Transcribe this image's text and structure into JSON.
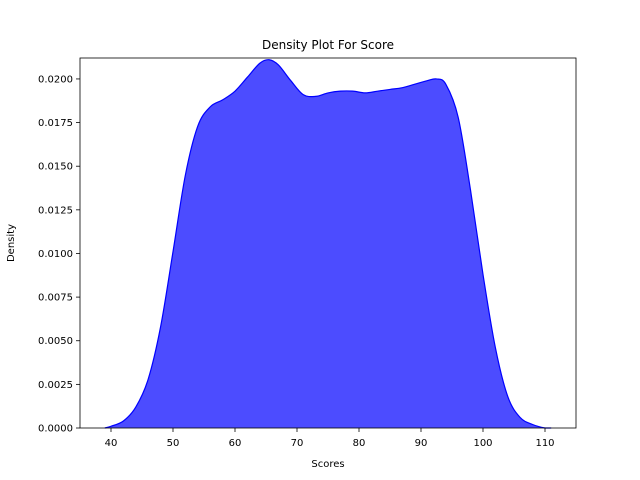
{
  "chart_data": {
    "type": "area",
    "title": "Density Plot For Score",
    "xlabel": "Scores",
    "ylabel": "Density",
    "xlim": [
      35,
      115
    ],
    "ylim": [
      0,
      0.0212
    ],
    "xticks": [
      40,
      50,
      60,
      70,
      80,
      90,
      100,
      110
    ],
    "xtick_labels": [
      "40",
      "50",
      "60",
      "70",
      "80",
      "90",
      "100",
      "110"
    ],
    "yticks": [
      0,
      0.0025,
      0.005,
      0.0075,
      0.01,
      0.0125,
      0.015,
      0.0175,
      0.02
    ],
    "ytick_labels": [
      "0.0000",
      "0.0025",
      "0.0050",
      "0.0075",
      "0.0100",
      "0.0125",
      "0.0150",
      "0.0175",
      "0.0200"
    ],
    "grid": false,
    "fill_color": "#0000ff",
    "fill_opacity": 0.7,
    "line_color": "#0000ff",
    "series": [
      {
        "x": [
          39,
          40,
          42,
          44,
          46,
          48,
          50,
          52,
          54,
          56,
          58,
          60,
          62,
          64,
          65.5,
          67,
          69,
          71,
          73,
          75,
          77,
          79,
          81,
          83,
          85,
          87,
          89,
          91,
          92.5,
          94,
          96,
          98,
          100,
          102,
          104,
          106,
          108,
          110,
          111
        ],
        "y": [
          0.0,
          0.0001,
          0.0004,
          0.0012,
          0.0028,
          0.0058,
          0.0101,
          0.0145,
          0.0173,
          0.0184,
          0.0188,
          0.0193,
          0.0201,
          0.0209,
          0.0211,
          0.0208,
          0.0199,
          0.0191,
          0.019,
          0.0192,
          0.0193,
          0.0193,
          0.0192,
          0.0193,
          0.0194,
          0.0195,
          0.0197,
          0.0199,
          0.02,
          0.0197,
          0.0178,
          0.0136,
          0.0088,
          0.0046,
          0.0018,
          0.0006,
          0.0002,
          0.0,
          0.0
        ]
      }
    ]
  }
}
